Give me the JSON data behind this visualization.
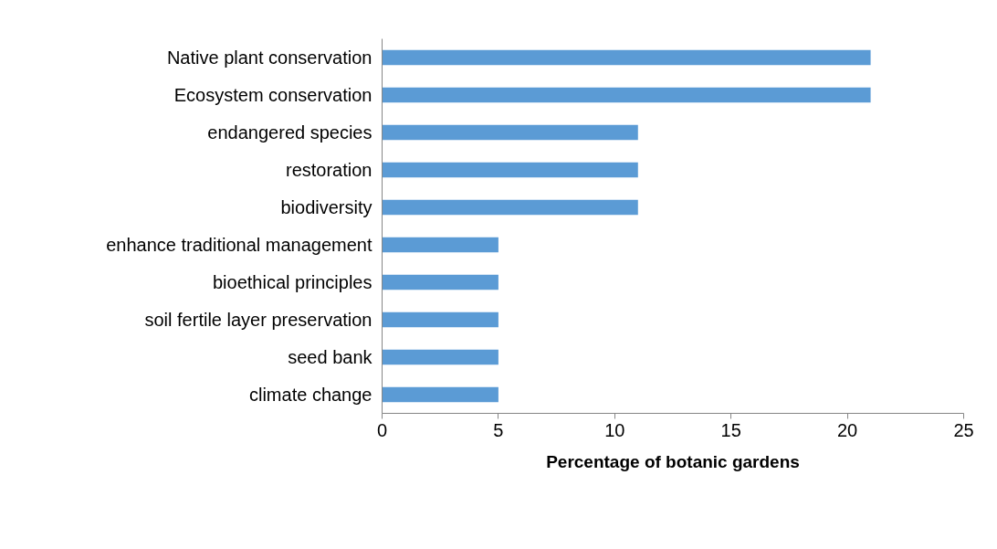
{
  "chart_data": {
    "type": "bar",
    "orientation": "horizontal",
    "xlabel": "Percentage of botanic gardens",
    "categories": [
      "Native plant conservation",
      "Ecosystem conservation",
      "endangered species",
      "restoration",
      "biodiversity",
      "enhance traditional management",
      "bioethical principles",
      "soil fertile layer preservation",
      "seed bank",
      "climate change"
    ],
    "values": [
      21,
      21,
      11,
      11,
      11,
      5,
      5,
      5,
      5,
      5
    ],
    "color": "#5b9bd5",
    "xlim": [
      0,
      25
    ],
    "xticks": [
      0,
      5,
      10,
      15,
      20,
      25
    ],
    "grid": false
  }
}
